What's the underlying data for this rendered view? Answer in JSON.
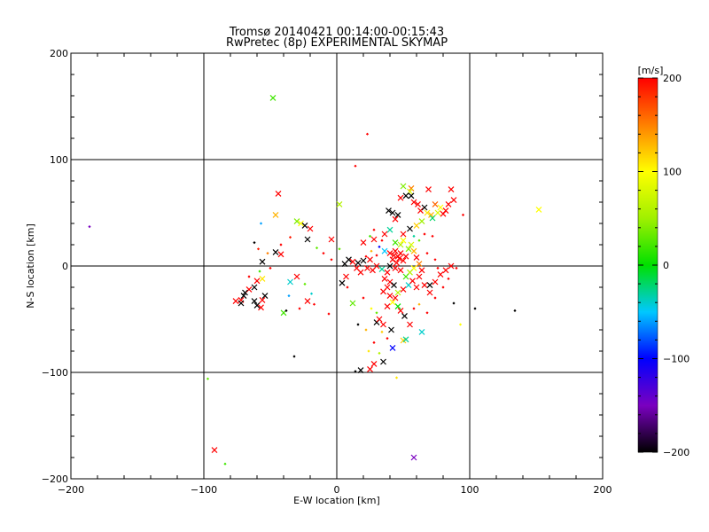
{
  "chart_data": {
    "type": "scatter",
    "title": "Tromsø 20140421 00:14:00-00:15:43",
    "subtitle": "RwPretec (8p) EXPERIMENTAL SKYMAP",
    "xlabel": "E-W location [km]",
    "ylabel": "N-S location [km]",
    "xlim": [
      -200,
      200
    ],
    "ylim": [
      -200,
      200
    ],
    "xticks": [
      -200,
      -100,
      0,
      100,
      200
    ],
    "yticks": [
      -200,
      -100,
      0,
      100,
      200
    ],
    "xtick_labels": [
      "−200",
      "−100",
      "0",
      "100",
      "200"
    ],
    "ytick_labels": [
      "−200",
      "−100",
      "0",
      "100",
      "200"
    ],
    "grid": true,
    "colorbar": {
      "label": "[m/s]",
      "range": [
        -200,
        200
      ],
      "ticks": [
        200,
        100,
        0,
        -100,
        -200
      ],
      "tick_labels": [
        "200",
        "100",
        "0",
        "−100",
        "−200"
      ]
    },
    "points": [
      {
        "x": -48,
        "y": 158,
        "v": 20,
        "m": "x"
      },
      {
        "x": 23,
        "y": 124,
        "v": 200,
        "m": "d"
      },
      {
        "x": 14,
        "y": 94,
        "v": 200,
        "m": "d"
      },
      {
        "x": 152,
        "y": 53,
        "v": 100,
        "m": "x"
      },
      {
        "x": -186,
        "y": 37,
        "v": -150,
        "m": "d"
      },
      {
        "x": -92,
        "y": -173,
        "v": 200,
        "m": "x"
      },
      {
        "x": -97,
        "y": -106,
        "v": 30,
        "m": "d"
      },
      {
        "x": -84,
        "y": -186,
        "v": 20,
        "m": "d"
      },
      {
        "x": 58,
        "y": -180,
        "v": -150,
        "m": "x"
      },
      {
        "x": 134,
        "y": -42,
        "v": -200,
        "m": "d"
      },
      {
        "x": 104,
        "y": -40,
        "v": -200,
        "m": "d"
      },
      {
        "x": -32,
        "y": -85,
        "v": -200,
        "m": "d"
      },
      {
        "x": -44,
        "y": 68,
        "v": 200,
        "m": "x"
      },
      {
        "x": -46,
        "y": 48,
        "v": 130,
        "m": "x"
      },
      {
        "x": -57,
        "y": 40,
        "v": -60,
        "m": "d"
      },
      {
        "x": -62,
        "y": 22,
        "v": -200,
        "m": "d"
      },
      {
        "x": -59,
        "y": 16,
        "v": 190,
        "m": "d"
      },
      {
        "x": -52,
        "y": 12,
        "v": 150,
        "m": "d"
      },
      {
        "x": -46,
        "y": 13,
        "v": -200,
        "m": "x"
      },
      {
        "x": -42,
        "y": 11,
        "v": 200,
        "m": "x"
      },
      {
        "x": -30,
        "y": 42,
        "v": 40,
        "m": "x"
      },
      {
        "x": -27,
        "y": 40,
        "v": 100,
        "m": "x"
      },
      {
        "x": -24,
        "y": 38,
        "v": -200,
        "m": "x"
      },
      {
        "x": -20,
        "y": 35,
        "v": 200,
        "m": "x"
      },
      {
        "x": -22,
        "y": 25,
        "v": -200,
        "m": "x"
      },
      {
        "x": -35,
        "y": 27,
        "v": 190,
        "m": "d"
      },
      {
        "x": -15,
        "y": 17,
        "v": 30,
        "m": "d"
      },
      {
        "x": -4,
        "y": 25,
        "v": 200,
        "m": "x"
      },
      {
        "x": 2,
        "y": 58,
        "v": 60,
        "m": "x"
      },
      {
        "x": -56,
        "y": 4,
        "v": -200,
        "m": "x"
      },
      {
        "x": -58,
        "y": -5,
        "v": 20,
        "m": "d"
      },
      {
        "x": -56,
        "y": -12,
        "v": 110,
        "m": "x"
      },
      {
        "x": -60,
        "y": -14,
        "v": 200,
        "m": "x"
      },
      {
        "x": -62,
        "y": -20,
        "v": -200,
        "m": "x"
      },
      {
        "x": -66,
        "y": -22,
        "v": 200,
        "m": "x"
      },
      {
        "x": -69,
        "y": -25,
        "v": -200,
        "m": "x"
      },
      {
        "x": -70,
        "y": -28,
        "v": -200,
        "m": "x"
      },
      {
        "x": -72,
        "y": -32,
        "v": 200,
        "m": "x"
      },
      {
        "x": -76,
        "y": -33,
        "v": 200,
        "m": "x"
      },
      {
        "x": -72,
        "y": -35,
        "v": -200,
        "m": "x"
      },
      {
        "x": -62,
        "y": -33,
        "v": -200,
        "m": "x"
      },
      {
        "x": -60,
        "y": -37,
        "v": -200,
        "m": "x"
      },
      {
        "x": -57,
        "y": -39,
        "v": 200,
        "m": "x"
      },
      {
        "x": -56,
        "y": -32,
        "v": 200,
        "m": "x"
      },
      {
        "x": -54,
        "y": -28,
        "v": -200,
        "m": "x"
      },
      {
        "x": -35,
        "y": -15,
        "v": -40,
        "m": "x"
      },
      {
        "x": -30,
        "y": -10,
        "v": 200,
        "m": "x"
      },
      {
        "x": -24,
        "y": -17,
        "v": 30,
        "m": "d"
      },
      {
        "x": -40,
        "y": -44,
        "v": 20,
        "m": "x"
      },
      {
        "x": -38,
        "y": -42,
        "v": -200,
        "m": "d"
      },
      {
        "x": -22,
        "y": -33,
        "v": 200,
        "m": "x"
      },
      {
        "x": -19,
        "y": -26,
        "v": -40,
        "m": "d"
      },
      {
        "x": -17,
        "y": -36,
        "v": 200,
        "m": "d"
      },
      {
        "x": -6,
        "y": -45,
        "v": 200,
        "m": "d"
      },
      {
        "x": 6,
        "y": 2,
        "v": -200,
        "m": "x"
      },
      {
        "x": 9,
        "y": 6,
        "v": -200,
        "m": "x"
      },
      {
        "x": 12,
        "y": 4,
        "v": 200,
        "m": "x"
      },
      {
        "x": 16,
        "y": 3,
        "v": -200,
        "m": "x"
      },
      {
        "x": 20,
        "y": 5,
        "v": -200,
        "m": "x"
      },
      {
        "x": 25,
        "y": 6,
        "v": 200,
        "m": "x"
      },
      {
        "x": 7,
        "y": -10,
        "v": 200,
        "m": "x"
      },
      {
        "x": 4,
        "y": -16,
        "v": -200,
        "m": "x"
      },
      {
        "x": 12,
        "y": -35,
        "v": 30,
        "m": "x"
      },
      {
        "x": 16,
        "y": -55,
        "v": -200,
        "m": "d"
      },
      {
        "x": 18,
        "y": -98,
        "v": -200,
        "m": "x"
      },
      {
        "x": 14,
        "y": -99,
        "v": -200,
        "m": "d"
      },
      {
        "x": 28,
        "y": -92,
        "v": 200,
        "m": "x"
      },
      {
        "x": 35,
        "y": -90,
        "v": -200,
        "m": "x"
      },
      {
        "x": 25,
        "y": -97,
        "v": 200,
        "m": "x"
      },
      {
        "x": 22,
        "y": -60,
        "v": 130,
        "m": "d"
      },
      {
        "x": 30,
        "y": -53,
        "v": -200,
        "m": "x"
      },
      {
        "x": 32,
        "y": -50,
        "v": 200,
        "m": "x"
      },
      {
        "x": 35,
        "y": -55,
        "v": 200,
        "m": "x"
      },
      {
        "x": 41,
        "y": -60,
        "v": -200,
        "m": "x"
      },
      {
        "x": 42,
        "y": -77,
        "v": -100,
        "m": "x"
      },
      {
        "x": 45,
        "y": -105,
        "v": 110,
        "m": "d"
      },
      {
        "x": 50,
        "y": -70,
        "v": 120,
        "m": "x"
      },
      {
        "x": 52,
        "y": -69,
        "v": -30,
        "m": "x"
      },
      {
        "x": 55,
        "y": -55,
        "v": 200,
        "m": "x"
      },
      {
        "x": 51,
        "y": -47,
        "v": -200,
        "m": "x"
      },
      {
        "x": 48,
        "y": -42,
        "v": 200,
        "m": "x"
      },
      {
        "x": 46,
        "y": -38,
        "v": 0,
        "m": "x"
      },
      {
        "x": 64,
        "y": -62,
        "v": -40,
        "m": "x"
      },
      {
        "x": 93,
        "y": -55,
        "v": 100,
        "m": "d"
      },
      {
        "x": 88,
        "y": -35,
        "v": -200,
        "m": "d"
      },
      {
        "x": 70,
        "y": -25,
        "v": 200,
        "m": "x"
      },
      {
        "x": 66,
        "y": -18,
        "v": 200,
        "m": "x"
      },
      {
        "x": 70,
        "y": -18,
        "v": -200,
        "m": "x"
      },
      {
        "x": 74,
        "y": -15,
        "v": 200,
        "m": "x"
      },
      {
        "x": 78,
        "y": -8,
        "v": 200,
        "m": "x"
      },
      {
        "x": 82,
        "y": -4,
        "v": 200,
        "m": "x"
      },
      {
        "x": 86,
        "y": 0,
        "v": 200,
        "m": "x"
      },
      {
        "x": 90,
        "y": -2,
        "v": 200,
        "m": "d"
      },
      {
        "x": 95,
        "y": 48,
        "v": 200,
        "m": "d"
      },
      {
        "x": 86,
        "y": 72,
        "v": 200,
        "m": "x"
      },
      {
        "x": 69,
        "y": 72,
        "v": 200,
        "m": "x"
      },
      {
        "x": 56,
        "y": 73,
        "v": 150,
        "m": "x"
      },
      {
        "x": 50,
        "y": 75,
        "v": 40,
        "m": "x"
      },
      {
        "x": 55,
        "y": 70,
        "v": 80,
        "m": "x"
      },
      {
        "x": 52,
        "y": 66,
        "v": -200,
        "m": "x"
      },
      {
        "x": 48,
        "y": 64,
        "v": 200,
        "m": "x"
      },
      {
        "x": 56,
        "y": 66,
        "v": -200,
        "m": "x"
      },
      {
        "x": 58,
        "y": 60,
        "v": 200,
        "m": "x"
      },
      {
        "x": 61,
        "y": 58,
        "v": 200,
        "m": "x"
      },
      {
        "x": 63,
        "y": 52,
        "v": 200,
        "m": "x"
      },
      {
        "x": 66,
        "y": 55,
        "v": -200,
        "m": "x"
      },
      {
        "x": 68,
        "y": 50,
        "v": 110,
        "m": "x"
      },
      {
        "x": 71,
        "y": 48,
        "v": 130,
        "m": "x"
      },
      {
        "x": 74,
        "y": 58,
        "v": 160,
        "m": "x"
      },
      {
        "x": 76,
        "y": 50,
        "v": 80,
        "m": "x"
      },
      {
        "x": 78,
        "y": 55,
        "v": 100,
        "m": "x"
      },
      {
        "x": 80,
        "y": 49,
        "v": 200,
        "m": "x"
      },
      {
        "x": 82,
        "y": 52,
        "v": 200,
        "m": "x"
      },
      {
        "x": 84,
        "y": 58,
        "v": 200,
        "m": "x"
      },
      {
        "x": 88,
        "y": 62,
        "v": 200,
        "m": "x"
      },
      {
        "x": 72,
        "y": 45,
        "v": -20,
        "m": "x"
      },
      {
        "x": 64,
        "y": 42,
        "v": 50,
        "m": "x"
      },
      {
        "x": 60,
        "y": 38,
        "v": 120,
        "m": "x"
      },
      {
        "x": 55,
        "y": 35,
        "v": -200,
        "m": "x"
      },
      {
        "x": 50,
        "y": 30,
        "v": 200,
        "m": "x"
      },
      {
        "x": 42,
        "y": 50,
        "v": -200,
        "m": "x"
      },
      {
        "x": 39,
        "y": 52,
        "v": -200,
        "m": "x"
      },
      {
        "x": 46,
        "y": 48,
        "v": -200,
        "m": "x"
      },
      {
        "x": 44,
        "y": 44,
        "v": 200,
        "m": "x"
      },
      {
        "x": 40,
        "y": 34,
        "v": -30,
        "m": "x"
      },
      {
        "x": 36,
        "y": 30,
        "v": 200,
        "m": "x"
      },
      {
        "x": 28,
        "y": 25,
        "v": 200,
        "m": "x"
      },
      {
        "x": 25,
        "y": 28,
        "v": 20,
        "m": "d"
      },
      {
        "x": 20,
        "y": 22,
        "v": 200,
        "m": "x"
      },
      {
        "x": 32,
        "y": 18,
        "v": -100,
        "m": "d"
      },
      {
        "x": 36,
        "y": 14,
        "v": -50,
        "m": "x"
      },
      {
        "x": 40,
        "y": 12,
        "v": 200,
        "m": "x"
      },
      {
        "x": 43,
        "y": 10,
        "v": 200,
        "m": "x"
      },
      {
        "x": 46,
        "y": 9,
        "v": 200,
        "m": "x"
      },
      {
        "x": 48,
        "y": 12,
        "v": 200,
        "m": "x"
      },
      {
        "x": 44,
        "y": 14,
        "v": 200,
        "m": "x"
      },
      {
        "x": 47,
        "y": 7,
        "v": 200,
        "m": "x"
      },
      {
        "x": 50,
        "y": 5,
        "v": 200,
        "m": "x"
      },
      {
        "x": 45,
        "y": 3,
        "v": 200,
        "m": "x"
      },
      {
        "x": 42,
        "y": 6,
        "v": 200,
        "m": "x"
      },
      {
        "x": 52,
        "y": 9,
        "v": 200,
        "m": "x"
      },
      {
        "x": 54,
        "y": 16,
        "v": 40,
        "m": "x"
      },
      {
        "x": 48,
        "y": 20,
        "v": 60,
        "m": "x"
      },
      {
        "x": 44,
        "y": 22,
        "v": 20,
        "m": "x"
      },
      {
        "x": 50,
        "y": 24,
        "v": 100,
        "m": "x"
      },
      {
        "x": 56,
        "y": 20,
        "v": 80,
        "m": "x"
      },
      {
        "x": 58,
        "y": 14,
        "v": 130,
        "m": "x"
      },
      {
        "x": 60,
        "y": 8,
        "v": 200,
        "m": "x"
      },
      {
        "x": 62,
        "y": 2,
        "v": 150,
        "m": "x"
      },
      {
        "x": 64,
        "y": -4,
        "v": 200,
        "m": "x"
      },
      {
        "x": 58,
        "y": -2,
        "v": 100,
        "m": "x"
      },
      {
        "x": 55,
        "y": -6,
        "v": 60,
        "m": "x"
      },
      {
        "x": 52,
        "y": -10,
        "v": 20,
        "m": "x"
      },
      {
        "x": 48,
        "y": -4,
        "v": 200,
        "m": "x"
      },
      {
        "x": 44,
        "y": -2,
        "v": 200,
        "m": "x"
      },
      {
        "x": 40,
        "y": 0,
        "v": -200,
        "m": "x"
      },
      {
        "x": 38,
        "y": -6,
        "v": 200,
        "m": "x"
      },
      {
        "x": 34,
        "y": -3,
        "v": -30,
        "m": "x"
      },
      {
        "x": 30,
        "y": 0,
        "v": 200,
        "m": "x"
      },
      {
        "x": 27,
        "y": -4,
        "v": 200,
        "m": "x"
      },
      {
        "x": 23,
        "y": -2,
        "v": 200,
        "m": "x"
      },
      {
        "x": 18,
        "y": -6,
        "v": 200,
        "m": "x"
      },
      {
        "x": 15,
        "y": -2,
        "v": 200,
        "m": "x"
      },
      {
        "x": 36,
        "y": -12,
        "v": 200,
        "m": "x"
      },
      {
        "x": 40,
        "y": -15,
        "v": 200,
        "m": "x"
      },
      {
        "x": 43,
        "y": -18,
        "v": -200,
        "m": "x"
      },
      {
        "x": 38,
        "y": -20,
        "v": 200,
        "m": "x"
      },
      {
        "x": 35,
        "y": -24,
        "v": 200,
        "m": "x"
      },
      {
        "x": 40,
        "y": -28,
        "v": 200,
        "m": "x"
      },
      {
        "x": 44,
        "y": -30,
        "v": 200,
        "m": "x"
      },
      {
        "x": 42,
        "y": -34,
        "v": 100,
        "m": "x"
      },
      {
        "x": 38,
        "y": -38,
        "v": 200,
        "m": "x"
      },
      {
        "x": 46,
        "y": -25,
        "v": 60,
        "m": "x"
      },
      {
        "x": 50,
        "y": -22,
        "v": 200,
        "m": "x"
      },
      {
        "x": 54,
        "y": -18,
        "v": -40,
        "m": "x"
      },
      {
        "x": 57,
        "y": -14,
        "v": 200,
        "m": "x"
      },
      {
        "x": 60,
        "y": -20,
        "v": 200,
        "m": "x"
      },
      {
        "x": 62,
        "y": -10,
        "v": 200,
        "m": "x"
      },
      {
        "x": 30,
        "y": 10,
        "v": 200,
        "m": "d"
      },
      {
        "x": 26,
        "y": 14,
        "v": 130,
        "m": "d"
      },
      {
        "x": 22,
        "y": 9,
        "v": 200,
        "m": "d"
      },
      {
        "x": 34,
        "y": 24,
        "v": 200,
        "m": "d"
      },
      {
        "x": 28,
        "y": 34,
        "v": 200,
        "m": "d"
      },
      {
        "x": 58,
        "y": 28,
        "v": -30,
        "m": "d"
      },
      {
        "x": 62,
        "y": 24,
        "v": 30,
        "m": "d"
      },
      {
        "x": 66,
        "y": 30,
        "v": 200,
        "m": "d"
      },
      {
        "x": 72,
        "y": 28,
        "v": 200,
        "m": "d"
      },
      {
        "x": 68,
        "y": 12,
        "v": 200,
        "m": "d"
      },
      {
        "x": 74,
        "y": 6,
        "v": 200,
        "m": "d"
      },
      {
        "x": 76,
        "y": -2,
        "v": 200,
        "m": "d"
      },
      {
        "x": 8,
        "y": -20,
        "v": 200,
        "m": "d"
      },
      {
        "x": 20,
        "y": -30,
        "v": 200,
        "m": "d"
      },
      {
        "x": 26,
        "y": -40,
        "v": 100,
        "m": "d"
      },
      {
        "x": 30,
        "y": -44,
        "v": 30,
        "m": "d"
      },
      {
        "x": 34,
        "y": -62,
        "v": 120,
        "m": "d"
      },
      {
        "x": 38,
        "y": -68,
        "v": 200,
        "m": "d"
      },
      {
        "x": 28,
        "y": -72,
        "v": 200,
        "m": "d"
      },
      {
        "x": 24,
        "y": -80,
        "v": 110,
        "m": "d"
      },
      {
        "x": 32,
        "y": -82,
        "v": 60,
        "m": "d"
      },
      {
        "x": 58,
        "y": -40,
        "v": 200,
        "m": "d"
      },
      {
        "x": 62,
        "y": -36,
        "v": 130,
        "m": "d"
      },
      {
        "x": 68,
        "y": -44,
        "v": 200,
        "m": "d"
      },
      {
        "x": 74,
        "y": -30,
        "v": 200,
        "m": "d"
      },
      {
        "x": 80,
        "y": -20,
        "v": 200,
        "m": "d"
      },
      {
        "x": 84,
        "y": -12,
        "v": 200,
        "m": "d"
      },
      {
        "x": -10,
        "y": 12,
        "v": 200,
        "m": "d"
      },
      {
        "x": -4,
        "y": 6,
        "v": 200,
        "m": "d"
      },
      {
        "x": 2,
        "y": 16,
        "v": 30,
        "m": "d"
      },
      {
        "x": -50,
        "y": -2,
        "v": 200,
        "m": "d"
      },
      {
        "x": -66,
        "y": -10,
        "v": 200,
        "m": "d"
      },
      {
        "x": -42,
        "y": 20,
        "v": 200,
        "m": "d"
      },
      {
        "x": -36,
        "y": -28,
        "v": -60,
        "m": "d"
      },
      {
        "x": -28,
        "y": -40,
        "v": 200,
        "m": "d"
      }
    ]
  }
}
